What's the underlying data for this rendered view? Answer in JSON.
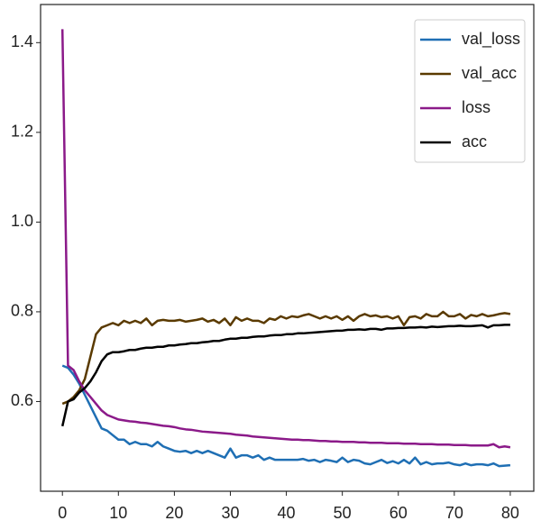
{
  "chart_data": {
    "type": "line",
    "x": [
      0,
      1,
      2,
      3,
      4,
      5,
      6,
      7,
      8,
      9,
      10,
      11,
      12,
      13,
      14,
      15,
      16,
      17,
      18,
      19,
      20,
      21,
      22,
      23,
      24,
      25,
      26,
      27,
      28,
      29,
      30,
      31,
      32,
      33,
      34,
      35,
      36,
      37,
      38,
      39,
      40,
      41,
      42,
      43,
      44,
      45,
      46,
      47,
      48,
      49,
      50,
      51,
      52,
      53,
      54,
      55,
      56,
      57,
      58,
      59,
      60,
      61,
      62,
      63,
      64,
      65,
      66,
      67,
      68,
      69,
      70,
      71,
      72,
      73,
      74,
      75,
      76,
      77,
      78,
      79,
      80
    ],
    "series": [
      {
        "name": "val_loss",
        "color": "#1f6fb4",
        "values": [
          0.68,
          0.675,
          0.66,
          0.64,
          0.615,
          0.59,
          0.565,
          0.54,
          0.535,
          0.525,
          0.515,
          0.515,
          0.505,
          0.51,
          0.505,
          0.505,
          0.5,
          0.51,
          0.5,
          0.495,
          0.49,
          0.488,
          0.49,
          0.485,
          0.49,
          0.485,
          0.49,
          0.485,
          0.48,
          0.475,
          0.495,
          0.475,
          0.48,
          0.48,
          0.475,
          0.48,
          0.47,
          0.475,
          0.47,
          0.47,
          0.47,
          0.47,
          0.47,
          0.472,
          0.468,
          0.47,
          0.465,
          0.47,
          0.468,
          0.465,
          0.475,
          0.465,
          0.47,
          0.468,
          0.462,
          0.46,
          0.465,
          0.47,
          0.463,
          0.467,
          0.462,
          0.47,
          0.462,
          0.475,
          0.46,
          0.465,
          0.46,
          0.462,
          0.462,
          0.464,
          0.46,
          0.458,
          0.462,
          0.458,
          0.46,
          0.46,
          0.458,
          0.462,
          0.456,
          0.457,
          0.458
        ]
      },
      {
        "name": "val_acc",
        "color": "#5a3a00",
        "values": [
          0.595,
          0.6,
          0.61,
          0.625,
          0.65,
          0.7,
          0.75,
          0.765,
          0.77,
          0.775,
          0.77,
          0.78,
          0.775,
          0.78,
          0.775,
          0.785,
          0.77,
          0.78,
          0.782,
          0.78,
          0.78,
          0.782,
          0.778,
          0.78,
          0.782,
          0.785,
          0.778,
          0.782,
          0.775,
          0.785,
          0.77,
          0.788,
          0.78,
          0.785,
          0.78,
          0.78,
          0.775,
          0.785,
          0.782,
          0.79,
          0.785,
          0.79,
          0.788,
          0.792,
          0.795,
          0.79,
          0.785,
          0.79,
          0.785,
          0.79,
          0.782,
          0.79,
          0.78,
          0.79,
          0.795,
          0.79,
          0.792,
          0.788,
          0.79,
          0.785,
          0.79,
          0.77,
          0.788,
          0.79,
          0.785,
          0.795,
          0.79,
          0.79,
          0.8,
          0.79,
          0.79,
          0.795,
          0.785,
          0.793,
          0.79,
          0.795,
          0.79,
          0.792,
          0.795,
          0.797,
          0.795
        ]
      },
      {
        "name": "loss",
        "color": "#8b1a89",
        "values": [
          1.43,
          0.68,
          0.67,
          0.645,
          0.625,
          0.61,
          0.595,
          0.58,
          0.57,
          0.565,
          0.56,
          0.558,
          0.556,
          0.555,
          0.553,
          0.552,
          0.55,
          0.548,
          0.546,
          0.545,
          0.543,
          0.54,
          0.538,
          0.537,
          0.535,
          0.533,
          0.532,
          0.531,
          0.53,
          0.529,
          0.528,
          0.526,
          0.525,
          0.524,
          0.522,
          0.521,
          0.52,
          0.519,
          0.518,
          0.517,
          0.516,
          0.515,
          0.515,
          0.514,
          0.514,
          0.513,
          0.512,
          0.512,
          0.511,
          0.511,
          0.51,
          0.51,
          0.51,
          0.509,
          0.509,
          0.508,
          0.508,
          0.508,
          0.507,
          0.507,
          0.507,
          0.506,
          0.506,
          0.506,
          0.505,
          0.505,
          0.505,
          0.504,
          0.504,
          0.504,
          0.503,
          0.503,
          0.503,
          0.502,
          0.502,
          0.502,
          0.502,
          0.505,
          0.498,
          0.5,
          0.498
        ]
      },
      {
        "name": "acc",
        "color": "#000000",
        "values": [
          0.545,
          0.6,
          0.605,
          0.62,
          0.63,
          0.645,
          0.665,
          0.69,
          0.705,
          0.71,
          0.71,
          0.712,
          0.715,
          0.715,
          0.718,
          0.72,
          0.72,
          0.722,
          0.722,
          0.725,
          0.725,
          0.727,
          0.728,
          0.73,
          0.73,
          0.732,
          0.733,
          0.735,
          0.735,
          0.738,
          0.74,
          0.74,
          0.742,
          0.742,
          0.744,
          0.745,
          0.745,
          0.747,
          0.748,
          0.748,
          0.75,
          0.75,
          0.752,
          0.752,
          0.753,
          0.754,
          0.755,
          0.756,
          0.757,
          0.758,
          0.758,
          0.76,
          0.76,
          0.761,
          0.76,
          0.762,
          0.762,
          0.76,
          0.763,
          0.763,
          0.764,
          0.764,
          0.765,
          0.765,
          0.766,
          0.765,
          0.767,
          0.766,
          0.767,
          0.768,
          0.768,
          0.769,
          0.768,
          0.768,
          0.769,
          0.77,
          0.765,
          0.77,
          0.77,
          0.771,
          0.771
        ]
      }
    ],
    "xlim": [
      -3.9,
      84.2
    ],
    "ylim": [
      0.4,
      1.485
    ],
    "xticks": [
      0,
      10,
      20,
      30,
      40,
      50,
      60,
      70,
      80
    ],
    "yticks": [
      0.6,
      0.8,
      {
        "value": 1,
        "label": "1.0"
      },
      1.2,
      1.4
    ],
    "legend": "upper right"
  }
}
